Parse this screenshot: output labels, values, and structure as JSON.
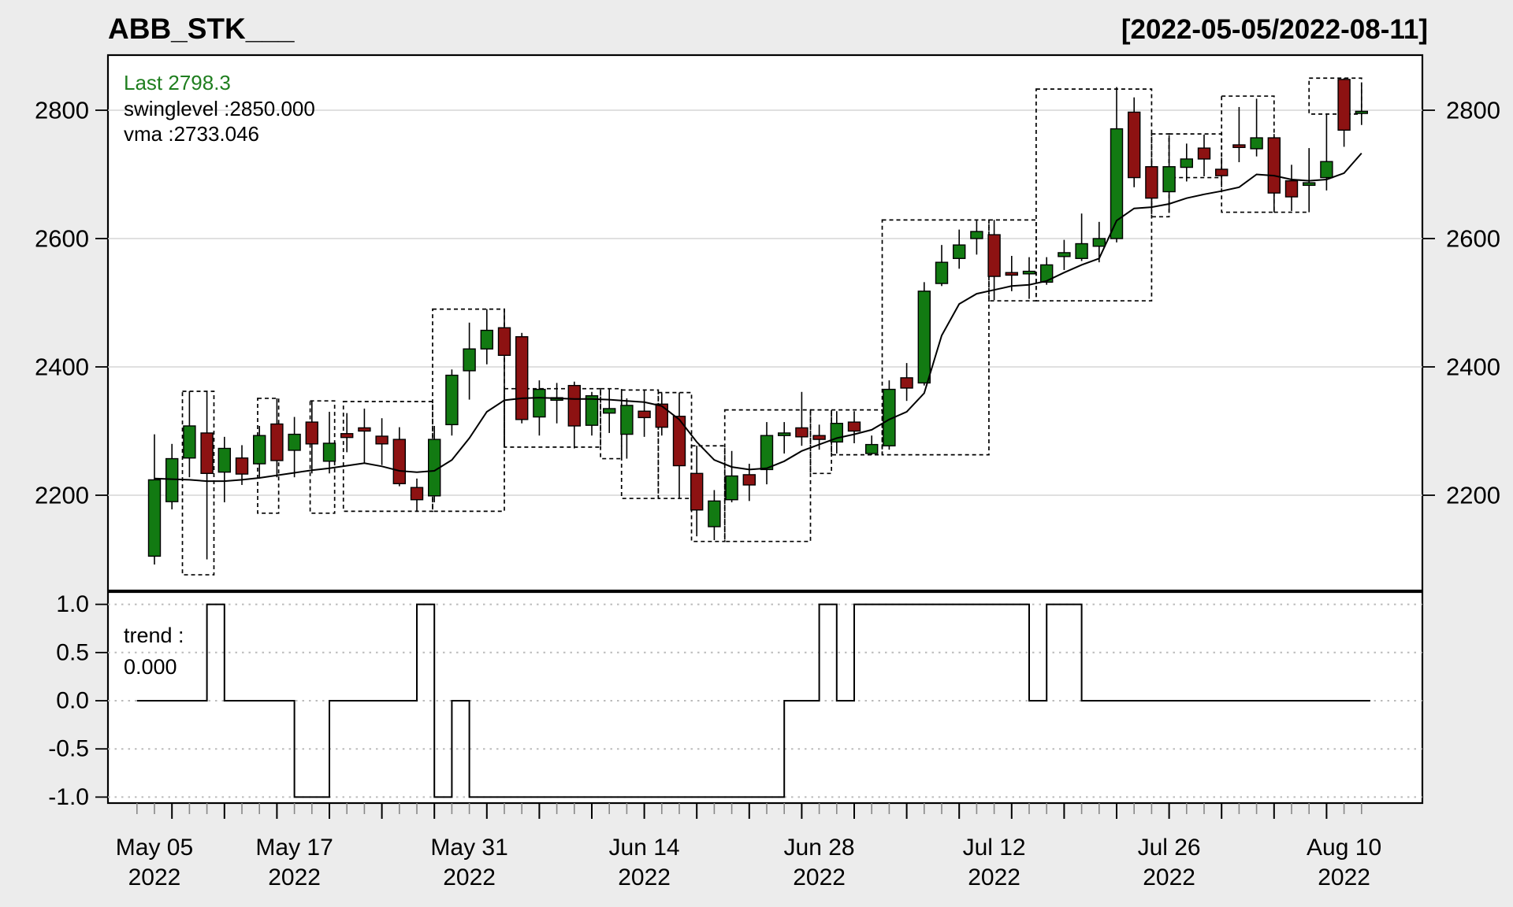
{
  "header": {
    "title": "ABB_STK___",
    "date_range": "[2022-05-05/2022-08-11]"
  },
  "legend": {
    "last_label": "Last 2798.3",
    "swinglevel_label": "swinglevel :2850.000",
    "vma_label": "vma :2733.046"
  },
  "trend_label": {
    "line1": "trend :",
    "line2": "0.000"
  },
  "colors": {
    "background": "#ececec",
    "panel": "#ffffff",
    "up": "#127a12",
    "down": "#8d1212",
    "outline": "#000000",
    "grid_main": "#d6d6d6",
    "grid_trend": "#bbbbbb",
    "minor_tick": "#888888",
    "last_text": "#1f7e1f"
  },
  "chart_data": {
    "type": "candlestick",
    "title": "ABB_STK___",
    "subtitle_range": "[2022-05-05/2022-08-11]",
    "n_candles": 70,
    "price_panel": {
      "ylim": [
        2050,
        2890
      ],
      "yticks": [
        2200,
        2400,
        2600,
        2800
      ],
      "grid": true,
      "last_value": 2798.3,
      "swinglevel": 2850.0,
      "vma_last": 2733.046,
      "ohlc": [
        [
          2105,
          2295,
          2092,
          2224
        ],
        [
          2190,
          2280,
          2178,
          2257
        ],
        [
          2258,
          2362,
          2228,
          2308
        ],
        [
          2297,
          2362,
          2100,
          2234
        ],
        [
          2236,
          2291,
          2189,
          2273
        ],
        [
          2258,
          2278,
          2216,
          2233
        ],
        [
          2249,
          2308,
          2228,
          2293
        ],
        [
          2311,
          2351,
          2228,
          2254
        ],
        [
          2270,
          2322,
          2228,
          2295
        ],
        [
          2314,
          2347,
          2234,
          2280
        ],
        [
          2253,
          2330,
          2234,
          2281
        ],
        [
          2296,
          2328,
          2267,
          2290
        ],
        [
          2305,
          2335,
          2250,
          2300
        ],
        [
          2292,
          2320,
          2247,
          2280
        ],
        [
          2287,
          2306,
          2214,
          2218
        ],
        [
          2212,
          2226,
          2175,
          2193
        ],
        [
          2199,
          2308,
          2189,
          2287
        ],
        [
          2310,
          2396,
          2293,
          2387
        ],
        [
          2394,
          2469,
          2349,
          2428
        ],
        [
          2428,
          2490,
          2404,
          2457
        ],
        [
          2461,
          2490,
          2275,
          2418
        ],
        [
          2447,
          2453,
          2312,
          2318
        ],
        [
          2322,
          2379,
          2293,
          2365
        ],
        [
          2348,
          2375,
          2312,
          2352
        ],
        [
          2371,
          2377,
          2273,
          2308
        ],
        [
          2309,
          2361,
          2293,
          2355
        ],
        [
          2328,
          2365,
          2297,
          2335
        ],
        [
          2295,
          2351,
          2257,
          2340
        ],
        [
          2331,
          2365,
          2291,
          2321
        ],
        [
          2342,
          2359,
          2293,
          2306
        ],
        [
          2323,
          2360,
          2195,
          2246
        ],
        [
          2234,
          2277,
          2136,
          2177
        ],
        [
          2151,
          2208,
          2130,
          2191
        ],
        [
          2193,
          2269,
          2189,
          2230
        ],
        [
          2232,
          2249,
          2191,
          2216
        ],
        [
          2240,
          2314,
          2217,
          2293
        ],
        [
          2293,
          2314,
          2265,
          2297
        ],
        [
          2305,
          2361,
          2277,
          2291
        ],
        [
          2293,
          2310,
          2271,
          2287
        ],
        [
          2283,
          2331,
          2265,
          2312
        ],
        [
          2314,
          2331,
          2281,
          2300
        ],
        [
          2265,
          2293,
          2263,
          2279
        ],
        [
          2277,
          2379,
          2271,
          2365
        ],
        [
          2383,
          2406,
          2347,
          2367
        ],
        [
          2375,
          2532,
          2371,
          2518
        ],
        [
          2530,
          2590,
          2526,
          2563
        ],
        [
          2569,
          2614,
          2553,
          2590
        ],
        [
          2600,
          2628,
          2575,
          2611
        ],
        [
          2606,
          2629,
          2504,
          2541
        ],
        [
          2547,
          2573,
          2518,
          2543
        ],
        [
          2545,
          2571,
          2506,
          2549
        ],
        [
          2532,
          2571,
          2528,
          2559
        ],
        [
          2572,
          2598,
          2551,
          2578
        ],
        [
          2569,
          2639,
          2565,
          2592
        ],
        [
          2588,
          2626,
          2563,
          2600
        ],
        [
          2600,
          2836,
          2594,
          2771
        ],
        [
          2797,
          2820,
          2680,
          2695
        ],
        [
          2712,
          2720,
          2649,
          2663
        ],
        [
          2673,
          2761,
          2640,
          2712
        ],
        [
          2711,
          2748,
          2689,
          2724
        ],
        [
          2741,
          2762,
          2697,
          2724
        ],
        [
          2708,
          2726,
          2680,
          2698
        ],
        [
          2746,
          2805,
          2719,
          2742
        ],
        [
          2740,
          2818,
          2728,
          2757
        ],
        [
          2757,
          2763,
          2641,
          2671
        ],
        [
          2690,
          2715,
          2643,
          2665
        ],
        [
          2683,
          2741,
          2641,
          2687
        ],
        [
          2695,
          2794,
          2675,
          2720
        ],
        [
          2848,
          2850,
          2743,
          2769
        ],
        [
          2795,
          2838,
          2777,
          2798.3
        ]
      ],
      "vma": [
        2226,
        2225,
        2224,
        2222,
        2222,
        2224,
        2227,
        2231,
        2235,
        2239,
        2242,
        2246,
        2250,
        2245,
        2238,
        2236,
        2238,
        2255,
        2289,
        2330,
        2348,
        2351,
        2352,
        2351,
        2350,
        2350,
        2349,
        2347,
        2345,
        2339,
        2318,
        2283,
        2255,
        2244,
        2240,
        2242,
        2253,
        2269,
        2279,
        2289,
        2295,
        2302,
        2318,
        2330,
        2359,
        2449,
        2498,
        2514,
        2520,
        2526,
        2528,
        2534,
        2547,
        2559,
        2569,
        2628,
        2647,
        2649,
        2654,
        2663,
        2669,
        2674,
        2680,
        2700,
        2698,
        2692,
        2690,
        2692,
        2702,
        2733
      ],
      "swing_boxes": [
        [
          1.6,
          3.4,
          2362,
          2076
        ],
        [
          5.9,
          7.1,
          2351,
          2172
        ],
        [
          8.9,
          10.3,
          2347,
          2172
        ],
        [
          10.8,
          15.9,
          2346,
          2175
        ],
        [
          15.9,
          20.0,
          2490,
          2175
        ],
        [
          20.0,
          25.5,
          2366,
          2275
        ],
        [
          25.5,
          26.7,
          2366,
          2257
        ],
        [
          26.7,
          28.8,
          2364,
          2195
        ],
        [
          28.8,
          30.7,
          2360,
          2195
        ],
        [
          30.7,
          32.6,
          2277,
          2128
        ],
        [
          32.6,
          37.5,
          2333,
          2128
        ],
        [
          37.5,
          38.7,
          2333,
          2234
        ],
        [
          38.7,
          41.6,
          2333,
          2263
        ],
        [
          41.6,
          47.7,
          2629,
          2263
        ],
        [
          47.7,
          50.4,
          2629,
          2503
        ],
        [
          50.4,
          57.0,
          2833,
          2503
        ],
        [
          57.0,
          58.0,
          2763,
          2634
        ],
        [
          58.0,
          61.0,
          2763,
          2695
        ],
        [
          61.0,
          64.0,
          2822,
          2641
        ],
        [
          64.0,
          66.0,
          2641,
          2641
        ],
        [
          66.0,
          69.0,
          2850,
          2794
        ]
      ]
    },
    "trend_panel": {
      "ylim": [
        -1.1,
        1.1
      ],
      "yticks": [
        "1.0",
        "0.5",
        "0.0",
        "-0.5",
        "-1.0"
      ],
      "ytick_values": [
        1.0,
        0.5,
        0.0,
        -0.5,
        -1.0
      ],
      "grid": "dotted",
      "values": [
        0,
        0,
        0,
        1,
        0,
        0,
        0,
        0,
        -1,
        -1,
        0,
        0,
        0,
        0,
        0,
        1,
        -1,
        0,
        -1,
        -1,
        -1,
        -1,
        -1,
        -1,
        -1,
        -1,
        -1,
        -1,
        -1,
        -1,
        -1,
        -1,
        -1,
        -1,
        -1,
        -1,
        0,
        0,
        1,
        0,
        1,
        1,
        1,
        1,
        1,
        1,
        1,
        1,
        1,
        1,
        0,
        1,
        1,
        0,
        0,
        0,
        0,
        0,
        0,
        0,
        0,
        0,
        0,
        0,
        0,
        0,
        0,
        0,
        0,
        0
      ]
    },
    "x_axis": {
      "labels": [
        {
          "day": 0,
          "line1": "May 05",
          "line2": "2022"
        },
        {
          "day": 8,
          "line1": "May 17",
          "line2": "2022"
        },
        {
          "day": 18,
          "line1": "May 31",
          "line2": "2022"
        },
        {
          "day": 28,
          "line1": "Jun 14",
          "line2": "2022"
        },
        {
          "day": 38,
          "line1": "Jun 28",
          "line2": "2022"
        },
        {
          "day": 48,
          "line1": "Jul 12",
          "line2": "2022"
        },
        {
          "day": 58,
          "line1": "Jul 26",
          "line2": "2022"
        },
        {
          "day": 68,
          "line1": "Aug 10",
          "line2": "2022"
        }
      ]
    }
  }
}
